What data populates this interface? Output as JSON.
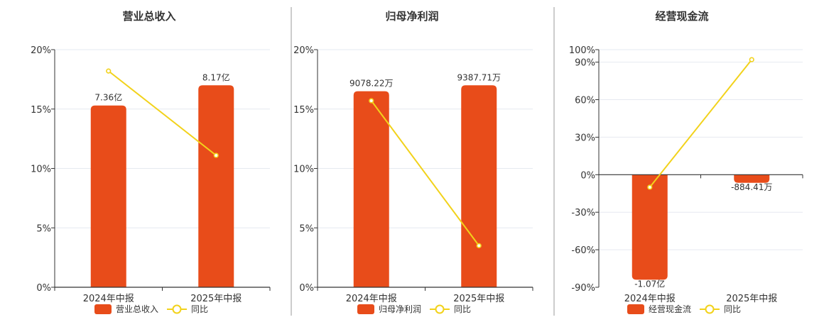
{
  "colors": {
    "bar": "#E84C1A",
    "line": "#F2D21B",
    "grid": "#E6E9F0",
    "axis": "#333333",
    "divider": "#999999"
  },
  "chart_data": [
    {
      "type": "bar",
      "title": "营业总收入",
      "categories": [
        "2024年中报",
        "2025年中报"
      ],
      "ylim": [
        0,
        20
      ],
      "yticks": [
        0,
        5,
        10,
        15,
        20
      ],
      "ytick_labels": [
        "0%",
        "5%",
        "10%",
        "15%",
        "20%"
      ],
      "series": [
        {
          "name": "营业总收入",
          "kind": "bar",
          "values": [
            15.3,
            17.0
          ],
          "labels": [
            "7.36亿",
            "8.17亿"
          ]
        },
        {
          "name": "同比",
          "kind": "line",
          "values": [
            18.2,
            11.1
          ]
        }
      ],
      "legend": "bottom-center",
      "grid": true
    },
    {
      "type": "bar",
      "title": "归母净利润",
      "categories": [
        "2024年中报",
        "2025年中报"
      ],
      "ylim": [
        0,
        20
      ],
      "yticks": [
        0,
        5,
        10,
        15,
        20
      ],
      "ytick_labels": [
        "0%",
        "5%",
        "10%",
        "15%",
        "20%"
      ],
      "series": [
        {
          "name": "归母净利润",
          "kind": "bar",
          "values": [
            16.5,
            17.0
          ],
          "labels": [
            "9078.22万",
            "9387.71万"
          ]
        },
        {
          "name": "同比",
          "kind": "line",
          "values": [
            15.7,
            3.5
          ]
        }
      ],
      "legend": "bottom-center",
      "grid": true
    },
    {
      "type": "bar",
      "title": "经营现金流",
      "categories": [
        "2024年中报",
        "2025年中报"
      ],
      "ylim": [
        -90,
        100
      ],
      "yticks": [
        -90,
        -60,
        -30,
        0,
        30,
        60,
        90,
        100
      ],
      "ytick_labels": [
        "-90%",
        "-60%",
        "-30%",
        "0%",
        "30%",
        "60%",
        "90%",
        "100%"
      ],
      "series": [
        {
          "name": "经营现金流",
          "kind": "bar",
          "values": [
            -84,
            -6.5
          ],
          "labels": [
            "-1.07亿",
            "-884.41万"
          ]
        },
        {
          "name": "同比",
          "kind": "line",
          "values": [
            -10,
            92
          ]
        }
      ],
      "legend": "bottom-center",
      "grid": true
    }
  ]
}
